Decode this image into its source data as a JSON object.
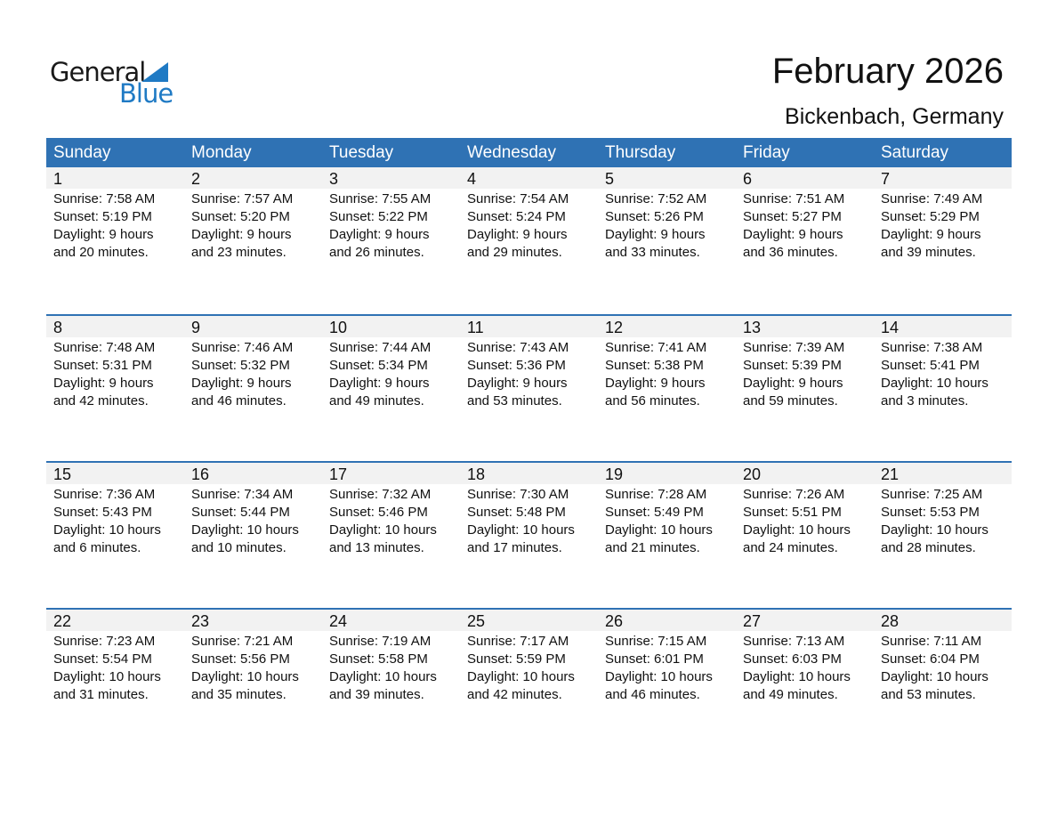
{
  "logo": {
    "text1": "General",
    "text2": "Blue"
  },
  "title": "February 2026",
  "location": "Bickenbach, Germany",
  "weekdays": [
    "Sunday",
    "Monday",
    "Tuesday",
    "Wednesday",
    "Thursday",
    "Friday",
    "Saturday"
  ],
  "accent": "#2f72b4",
  "weeks": [
    [
      {
        "day": "1",
        "sunrise": "Sunrise: 7:58 AM",
        "sunset": "Sunset: 5:19 PM",
        "daylight": "Daylight: 9 hours",
        "minutes": "and 20 minutes."
      },
      {
        "day": "2",
        "sunrise": "Sunrise: 7:57 AM",
        "sunset": "Sunset: 5:20 PM",
        "daylight": "Daylight: 9 hours",
        "minutes": "and 23 minutes."
      },
      {
        "day": "3",
        "sunrise": "Sunrise: 7:55 AM",
        "sunset": "Sunset: 5:22 PM",
        "daylight": "Daylight: 9 hours",
        "minutes": "and 26 minutes."
      },
      {
        "day": "4",
        "sunrise": "Sunrise: 7:54 AM",
        "sunset": "Sunset: 5:24 PM",
        "daylight": "Daylight: 9 hours",
        "minutes": "and 29 minutes."
      },
      {
        "day": "5",
        "sunrise": "Sunrise: 7:52 AM",
        "sunset": "Sunset: 5:26 PM",
        "daylight": "Daylight: 9 hours",
        "minutes": "and 33 minutes."
      },
      {
        "day": "6",
        "sunrise": "Sunrise: 7:51 AM",
        "sunset": "Sunset: 5:27 PM",
        "daylight": "Daylight: 9 hours",
        "minutes": "and 36 minutes."
      },
      {
        "day": "7",
        "sunrise": "Sunrise: 7:49 AM",
        "sunset": "Sunset: 5:29 PM",
        "daylight": "Daylight: 9 hours",
        "minutes": "and 39 minutes."
      }
    ],
    [
      {
        "day": "8",
        "sunrise": "Sunrise: 7:48 AM",
        "sunset": "Sunset: 5:31 PM",
        "daylight": "Daylight: 9 hours",
        "minutes": "and 42 minutes."
      },
      {
        "day": "9",
        "sunrise": "Sunrise: 7:46 AM",
        "sunset": "Sunset: 5:32 PM",
        "daylight": "Daylight: 9 hours",
        "minutes": "and 46 minutes."
      },
      {
        "day": "10",
        "sunrise": "Sunrise: 7:44 AM",
        "sunset": "Sunset: 5:34 PM",
        "daylight": "Daylight: 9 hours",
        "minutes": "and 49 minutes."
      },
      {
        "day": "11",
        "sunrise": "Sunrise: 7:43 AM",
        "sunset": "Sunset: 5:36 PM",
        "daylight": "Daylight: 9 hours",
        "minutes": "and 53 minutes."
      },
      {
        "day": "12",
        "sunrise": "Sunrise: 7:41 AM",
        "sunset": "Sunset: 5:38 PM",
        "daylight": "Daylight: 9 hours",
        "minutes": "and 56 minutes."
      },
      {
        "day": "13",
        "sunrise": "Sunrise: 7:39 AM",
        "sunset": "Sunset: 5:39 PM",
        "daylight": "Daylight: 9 hours",
        "minutes": "and 59 minutes."
      },
      {
        "day": "14",
        "sunrise": "Sunrise: 7:38 AM",
        "sunset": "Sunset: 5:41 PM",
        "daylight": "Daylight: 10 hours",
        "minutes": "and 3 minutes."
      }
    ],
    [
      {
        "day": "15",
        "sunrise": "Sunrise: 7:36 AM",
        "sunset": "Sunset: 5:43 PM",
        "daylight": "Daylight: 10 hours",
        "minutes": "and 6 minutes."
      },
      {
        "day": "16",
        "sunrise": "Sunrise: 7:34 AM",
        "sunset": "Sunset: 5:44 PM",
        "daylight": "Daylight: 10 hours",
        "minutes": "and 10 minutes."
      },
      {
        "day": "17",
        "sunrise": "Sunrise: 7:32 AM",
        "sunset": "Sunset: 5:46 PM",
        "daylight": "Daylight: 10 hours",
        "minutes": "and 13 minutes."
      },
      {
        "day": "18",
        "sunrise": "Sunrise: 7:30 AM",
        "sunset": "Sunset: 5:48 PM",
        "daylight": "Daylight: 10 hours",
        "minutes": "and 17 minutes."
      },
      {
        "day": "19",
        "sunrise": "Sunrise: 7:28 AM",
        "sunset": "Sunset: 5:49 PM",
        "daylight": "Daylight: 10 hours",
        "minutes": "and 21 minutes."
      },
      {
        "day": "20",
        "sunrise": "Sunrise: 7:26 AM",
        "sunset": "Sunset: 5:51 PM",
        "daylight": "Daylight: 10 hours",
        "minutes": "and 24 minutes."
      },
      {
        "day": "21",
        "sunrise": "Sunrise: 7:25 AM",
        "sunset": "Sunset: 5:53 PM",
        "daylight": "Daylight: 10 hours",
        "minutes": "and 28 minutes."
      }
    ],
    [
      {
        "day": "22",
        "sunrise": "Sunrise: 7:23 AM",
        "sunset": "Sunset: 5:54 PM",
        "daylight": "Daylight: 10 hours",
        "minutes": "and 31 minutes."
      },
      {
        "day": "23",
        "sunrise": "Sunrise: 7:21 AM",
        "sunset": "Sunset: 5:56 PM",
        "daylight": "Daylight: 10 hours",
        "minutes": "and 35 minutes."
      },
      {
        "day": "24",
        "sunrise": "Sunrise: 7:19 AM",
        "sunset": "Sunset: 5:58 PM",
        "daylight": "Daylight: 10 hours",
        "minutes": "and 39 minutes."
      },
      {
        "day": "25",
        "sunrise": "Sunrise: 7:17 AM",
        "sunset": "Sunset: 5:59 PM",
        "daylight": "Daylight: 10 hours",
        "minutes": "and 42 minutes."
      },
      {
        "day": "26",
        "sunrise": "Sunrise: 7:15 AM",
        "sunset": "Sunset: 6:01 PM",
        "daylight": "Daylight: 10 hours",
        "minutes": "and 46 minutes."
      },
      {
        "day": "27",
        "sunrise": "Sunrise: 7:13 AM",
        "sunset": "Sunset: 6:03 PM",
        "daylight": "Daylight: 10 hours",
        "minutes": "and 49 minutes."
      },
      {
        "day": "28",
        "sunrise": "Sunrise: 7:11 AM",
        "sunset": "Sunset: 6:04 PM",
        "daylight": "Daylight: 10 hours",
        "minutes": "and 53 minutes."
      }
    ]
  ]
}
